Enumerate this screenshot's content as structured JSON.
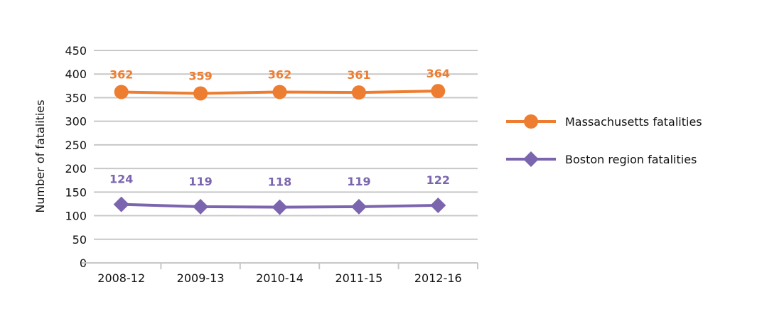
{
  "chart_data": {
    "type": "line",
    "categories": [
      "2008-12",
      "2009-13",
      "2010-14",
      "2011-15",
      "2012-16"
    ],
    "ylabel": "Number of fatalities",
    "xlabel": "",
    "ylim": [
      0,
      450
    ],
    "yticks": [
      0,
      50,
      100,
      150,
      200,
      250,
      300,
      350,
      400,
      450
    ],
    "grid": true,
    "legend_position": "right",
    "series": [
      {
        "name": "Massachusetts fatalities",
        "values": [
          362,
          359,
          362,
          361,
          364
        ],
        "color": "#ED7D31",
        "marker": "circle"
      },
      {
        "name": "Boston region fatalities",
        "values": [
          124,
          119,
          118,
          119,
          122
        ],
        "color": "#7B65AF",
        "marker": "diamond"
      }
    ]
  }
}
